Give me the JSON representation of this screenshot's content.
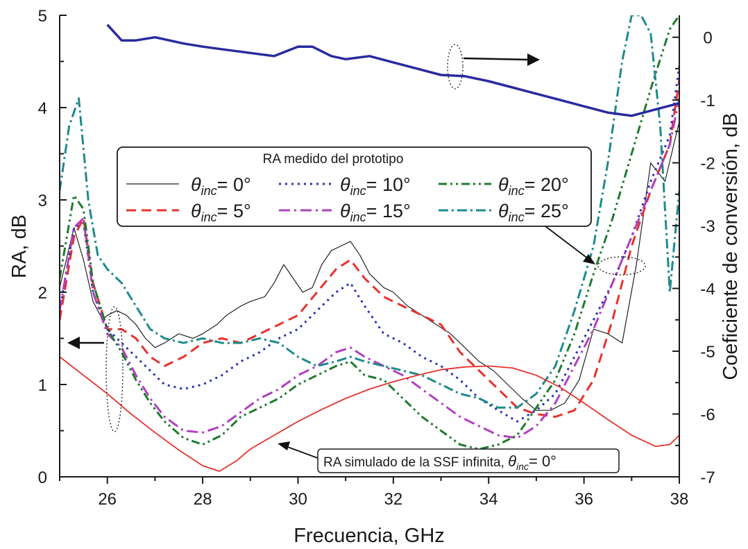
{
  "chart_data": {
    "type": "line",
    "xlabel": "Frecuencia, GHz",
    "ylabel": "RA, dB",
    "y2label": "Coeficiente de conversión, dB",
    "xlim": [
      25,
      38
    ],
    "ylim": [
      0,
      5
    ],
    "y2lim": [
      -7,
      0.35
    ],
    "xticks": [
      "26",
      "28",
      "30",
      "32",
      "34",
      "36",
      "38"
    ],
    "yticks": [
      "0",
      "1",
      "2",
      "3",
      "4",
      "5"
    ],
    "y2ticks": [
      "0",
      "-1",
      "-2",
      "-3",
      "-4",
      "-5",
      "-6",
      "-7"
    ],
    "legend_title": "RA medido del prototipo",
    "grid": false,
    "legend_placement": "center-left",
    "series": [
      {
        "name": "θinc= 0°",
        "label_prefix": "θ",
        "label_sub": "inc",
        "label_suffix": "= 0°",
        "color": "#222222",
        "dash": "",
        "width": 1.2,
        "axis": "left",
        "x": [
          25,
          25.3,
          25.5,
          25.7,
          25.9,
          26.0,
          26.2,
          26.4,
          26.6,
          26.8,
          27.0,
          27.2,
          27.5,
          27.8,
          28.0,
          28.3,
          28.5,
          28.8,
          29.0,
          29.3,
          29.5,
          29.7,
          29.9,
          30.1,
          30.3,
          30.5,
          30.7,
          30.9,
          31.1,
          31.3,
          31.5,
          31.8,
          32.0,
          32.3,
          32.6,
          32.9,
          33.2,
          33.5,
          33.8,
          34.1,
          34.4,
          34.7,
          35.0,
          35.3,
          35.6,
          35.9,
          36.2,
          36.5,
          36.8,
          37.1,
          37.4,
          37.7,
          38.0
        ],
        "y": [
          2.05,
          2.7,
          2.35,
          1.9,
          1.7,
          1.75,
          1.8,
          1.75,
          1.65,
          1.5,
          1.4,
          1.45,
          1.55,
          1.5,
          1.55,
          1.65,
          1.75,
          1.85,
          1.9,
          1.95,
          2.1,
          2.3,
          2.15,
          2.0,
          2.05,
          2.3,
          2.45,
          2.5,
          2.55,
          2.4,
          2.2,
          2.05,
          2.0,
          1.85,
          1.75,
          1.65,
          1.55,
          1.4,
          1.25,
          1.15,
          1.0,
          0.85,
          0.72,
          0.72,
          0.8,
          1.05,
          1.6,
          1.55,
          1.45,
          2.3,
          3.4,
          3.2,
          3.85
        ]
      },
      {
        "name": "θinc= 5°",
        "label_prefix": "θ",
        "label_sub": "inc",
        "label_suffix": "= 5°",
        "color": "#e8312b",
        "dash": "14 8",
        "width": 3,
        "axis": "left",
        "x": [
          25,
          25.3,
          25.5,
          25.7,
          26.0,
          26.3,
          26.6,
          26.9,
          27.2,
          27.6,
          28.0,
          28.4,
          28.8,
          29.2,
          29.6,
          30.0,
          30.4,
          30.8,
          31.1,
          31.4,
          31.8,
          32.2,
          32.6,
          33.0,
          33.4,
          33.8,
          34.2,
          34.6,
          35.0,
          35.4,
          35.8,
          36.2,
          36.6,
          37.0,
          37.4,
          37.8,
          38.0
        ],
        "y": [
          1.7,
          2.6,
          2.8,
          2.1,
          1.6,
          1.6,
          1.5,
          1.3,
          1.2,
          1.3,
          1.45,
          1.5,
          1.45,
          1.55,
          1.65,
          1.75,
          2.0,
          2.25,
          2.35,
          2.15,
          1.95,
          1.85,
          1.75,
          1.65,
          1.35,
          1.15,
          0.95,
          0.75,
          0.68,
          0.65,
          0.72,
          1.05,
          1.7,
          2.5,
          3.1,
          3.6,
          4.3
        ]
      },
      {
        "name": "θinc= 10°",
        "label_prefix": "θ",
        "label_sub": "inc",
        "label_suffix": "= 10°",
        "color": "#2b35b0",
        "dash": "3 6",
        "width": 3,
        "axis": "left",
        "x": [
          25,
          25.3,
          25.5,
          25.7,
          26.0,
          26.3,
          26.6,
          26.9,
          27.2,
          27.6,
          28.0,
          28.4,
          28.8,
          29.2,
          29.6,
          30.0,
          30.4,
          30.8,
          31.1,
          31.4,
          31.8,
          32.2,
          32.6,
          33.0,
          33.4,
          33.8,
          34.2,
          34.6,
          35.0,
          35.4,
          35.8,
          36.2,
          36.6,
          37.0,
          37.4,
          37.8,
          38.0
        ],
        "y": [
          1.8,
          2.7,
          2.75,
          2.0,
          1.6,
          1.45,
          1.3,
          1.15,
          1.0,
          0.95,
          1.0,
          1.1,
          1.25,
          1.35,
          1.5,
          1.6,
          1.8,
          2.0,
          2.1,
          1.85,
          1.55,
          1.45,
          1.3,
          1.2,
          1.05,
          0.85,
          0.72,
          0.6,
          0.72,
          0.9,
          1.3,
          1.7,
          2.1,
          2.6,
          3.2,
          3.7,
          4.45
        ]
      },
      {
        "name": "θinc= 15°",
        "label_prefix": "θ",
        "label_sub": "inc",
        "label_suffix": "= 15°",
        "color": "#b03fc0",
        "dash": "16 6 3 6",
        "width": 3,
        "axis": "left",
        "x": [
          25,
          25.3,
          25.5,
          25.7,
          26.0,
          26.3,
          26.6,
          26.9,
          27.2,
          27.6,
          28.0,
          28.4,
          28.8,
          29.2,
          29.6,
          30.0,
          30.4,
          30.8,
          31.1,
          31.4,
          31.8,
          32.2,
          32.6,
          33.0,
          33.4,
          33.8,
          34.2,
          34.6,
          35.0,
          35.4,
          35.8,
          36.2,
          36.6,
          37.0,
          37.4,
          37.8,
          38.0
        ],
        "y": [
          1.8,
          2.7,
          2.8,
          2.0,
          1.55,
          1.4,
          1.1,
          0.85,
          0.65,
          0.5,
          0.48,
          0.55,
          0.7,
          0.85,
          0.95,
          1.1,
          1.2,
          1.35,
          1.4,
          1.3,
          1.2,
          1.1,
          0.95,
          0.8,
          0.65,
          0.55,
          0.45,
          0.42,
          0.55,
          0.8,
          1.2,
          1.6,
          2.1,
          2.6,
          3.1,
          3.6,
          4.1
        ]
      },
      {
        "name": "θinc= 20°",
        "label_prefix": "θ",
        "label_sub": "inc",
        "label_suffix": "= 20°",
        "color": "#1f7a30",
        "dash": "12 5 3 5 3 5",
        "width": 3,
        "axis": "left",
        "x": [
          25,
          25.3,
          25.5,
          25.7,
          26.0,
          26.3,
          26.6,
          26.9,
          27.2,
          27.6,
          28.0,
          28.4,
          28.8,
          29.2,
          29.6,
          30.0,
          30.4,
          30.8,
          31.1,
          31.4,
          31.8,
          32.2,
          32.6,
          33.0,
          33.4,
          33.8,
          34.2,
          34.6,
          35.0,
          35.4,
          35.8,
          36.2,
          36.6,
          37.0,
          37.4,
          37.8,
          38.0
        ],
        "y": [
          2.15,
          3.05,
          2.9,
          2.1,
          1.6,
          1.35,
          1.05,
          0.8,
          0.6,
          0.42,
          0.35,
          0.45,
          0.65,
          0.75,
          0.85,
          1.0,
          1.1,
          1.2,
          1.25,
          1.1,
          1.05,
          0.85,
          0.65,
          0.5,
          0.35,
          0.3,
          0.35,
          0.45,
          0.75,
          1.05,
          1.55,
          2.2,
          2.8,
          3.5,
          4.2,
          4.85,
          5.0
        ]
      },
      {
        "name": "θinc= 25°",
        "label_prefix": "θ",
        "label_sub": "inc",
        "label_suffix": "= 25°",
        "color": "#1e8a8c",
        "dash": "14 5 3 5",
        "width": 3,
        "axis": "left",
        "x": [
          25,
          25.2,
          25.4,
          25.6,
          25.8,
          26.0,
          26.3,
          26.6,
          26.9,
          27.2,
          27.6,
          28.0,
          28.4,
          28.8,
          29.2,
          29.6,
          30.0,
          30.4,
          30.8,
          31.1,
          31.4,
          31.8,
          32.2,
          32.6,
          33.0,
          33.4,
          33.8,
          34.2,
          34.6,
          35.0,
          35.4,
          35.8,
          36.2,
          36.5,
          36.8,
          37.0,
          37.2,
          37.4,
          37.6,
          37.8,
          38.0
        ],
        "y": [
          3.1,
          3.8,
          4.1,
          3.0,
          2.4,
          2.25,
          2.1,
          1.85,
          1.6,
          1.5,
          1.45,
          1.5,
          1.45,
          1.45,
          1.5,
          1.45,
          1.3,
          1.2,
          1.25,
          1.3,
          1.25,
          1.2,
          1.15,
          1.1,
          1.0,
          0.9,
          0.85,
          0.75,
          0.75,
          0.9,
          1.2,
          1.8,
          2.5,
          3.4,
          4.5,
          5.0,
          5.0,
          4.8,
          3.8,
          2.0,
          3.1
        ]
      },
      {
        "name": "",
        "color": "#e8312b",
        "dash": "",
        "width": 1.8,
        "axis": "left",
        "x": [
          25,
          25.5,
          26.0,
          26.5,
          27.0,
          27.5,
          28.0,
          28.35,
          28.7,
          29.0,
          29.5,
          30.0,
          30.5,
          31.0,
          31.5,
          32.0,
          32.5,
          33.0,
          33.5,
          34.0,
          34.5,
          35.0,
          35.5,
          36.0,
          36.5,
          37.0,
          37.5,
          37.8,
          38.0
        ],
        "y": [
          1.3,
          1.1,
          0.9,
          0.68,
          0.48,
          0.29,
          0.12,
          0.06,
          0.17,
          0.3,
          0.45,
          0.6,
          0.73,
          0.85,
          0.95,
          1.03,
          1.1,
          1.16,
          1.19,
          1.2,
          1.18,
          1.1,
          0.97,
          0.8,
          0.62,
          0.45,
          0.33,
          0.35,
          0.45
        ]
      },
      {
        "name": "",
        "color": "#2a2aa0",
        "dash": "",
        "width": 3.5,
        "axis": "right",
        "x": [
          26.0,
          26.3,
          26.6,
          27.0,
          27.3,
          27.6,
          28.0,
          28.5,
          29.0,
          29.5,
          30.0,
          30.3,
          30.7,
          31.0,
          31.5,
          32.0,
          32.5,
          33.0,
          33.5,
          34.0,
          34.5,
          35.0,
          35.5,
          36.0,
          36.5,
          37.0,
          37.5,
          38.0
        ],
        "y": [
          0.2,
          -0.05,
          -0.05,
          0.0,
          -0.05,
          -0.1,
          -0.15,
          -0.2,
          -0.25,
          -0.3,
          -0.15,
          -0.15,
          -0.3,
          -0.35,
          -0.3,
          -0.4,
          -0.5,
          -0.6,
          -0.62,
          -0.7,
          -0.8,
          -0.9,
          -1.0,
          -1.1,
          -1.2,
          -1.25,
          -1.15,
          -1.05
        ]
      }
    ],
    "annotation": {
      "prefix": "RA simulado de la SSF infinita, ",
      "theta": "θ",
      "sub": "inc",
      "suffix": "= 0°"
    }
  }
}
